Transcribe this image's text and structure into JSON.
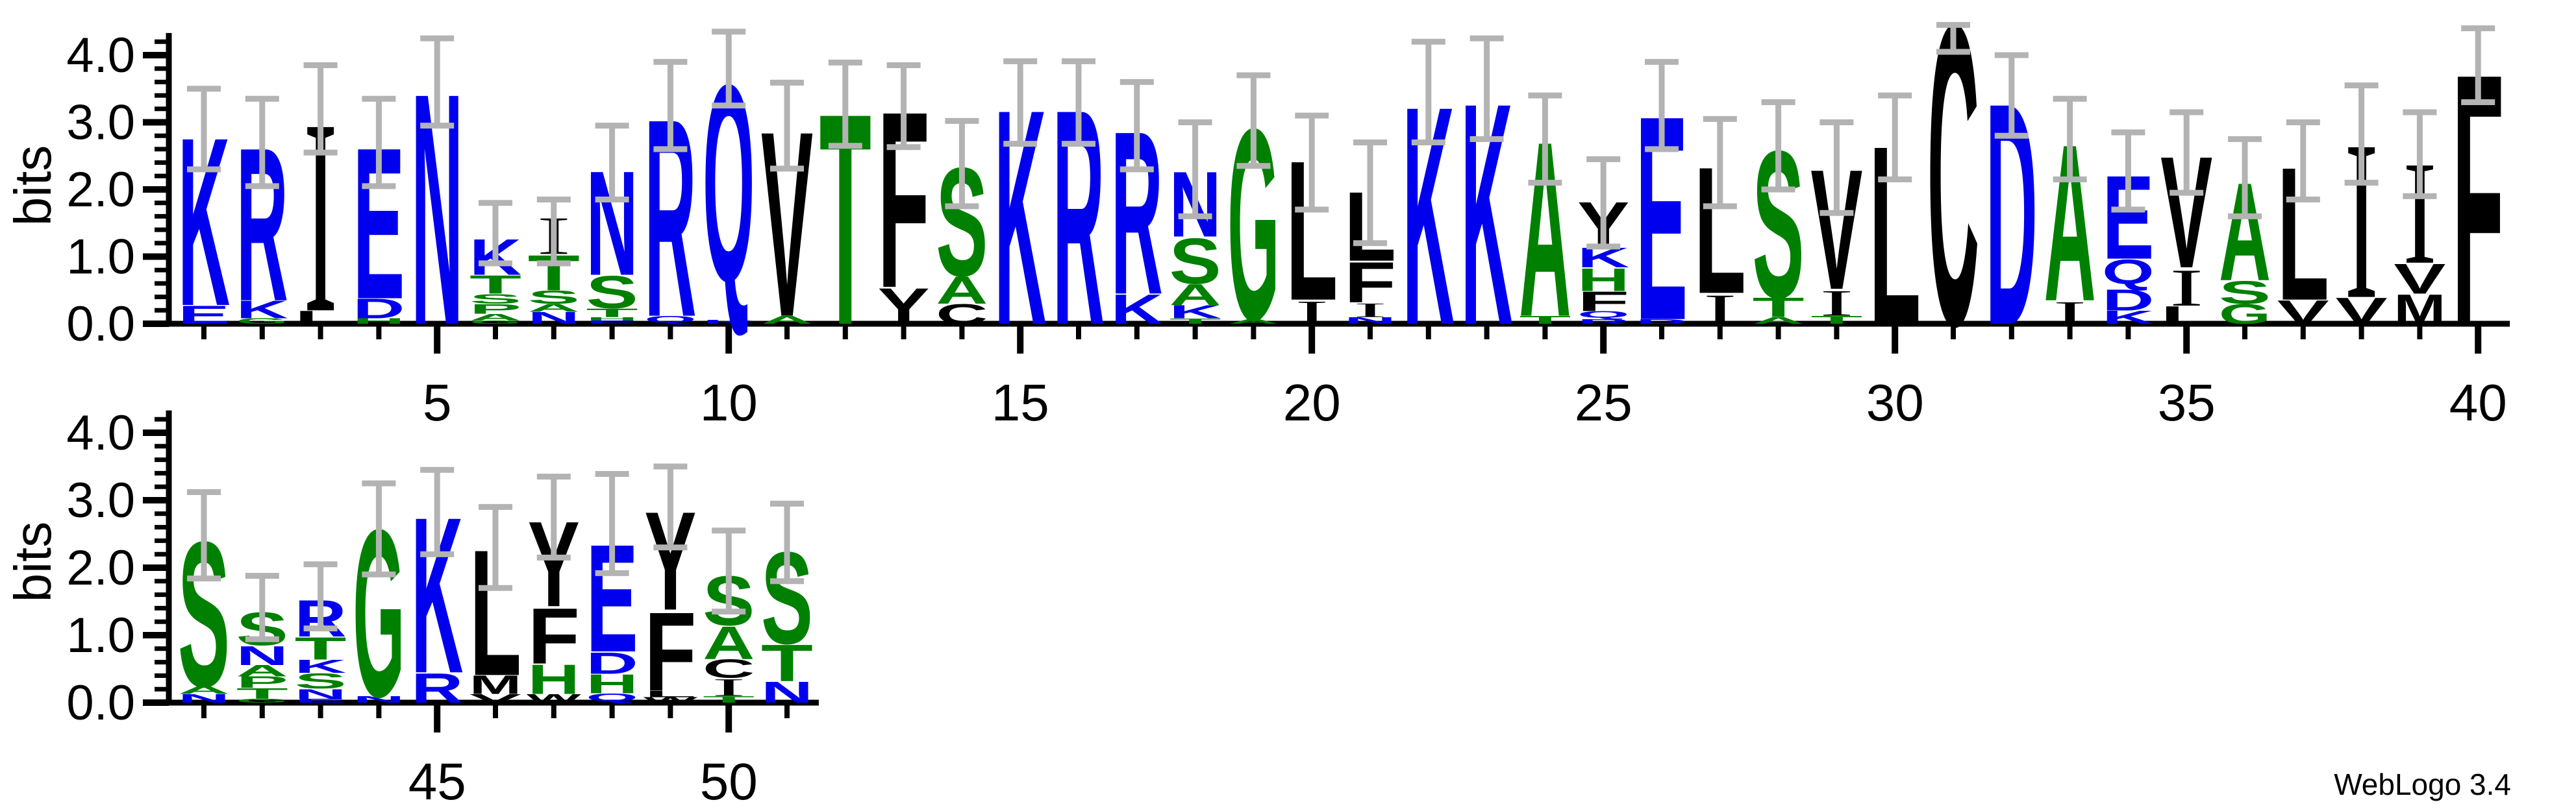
{
  "credit": "WebLogo 3.4",
  "chart_data": {
    "type": "bar",
    "variant": "protein-sequence-logo",
    "title": "",
    "xlabel": "",
    "ylabel": "bits",
    "ylim": [
      0,
      4.33
    ],
    "ytick_labels": [
      "0.0",
      "1.0",
      "2.0",
      "3.0",
      "4.0"
    ],
    "ytick_values": [
      0,
      1,
      2,
      3,
      4
    ],
    "minor_ytick_step": 0.2,
    "grid": false,
    "legend": "none",
    "error_bars": true,
    "colors": {
      "blue": "#0000ee",
      "green": "#008000",
      "black": "#000000",
      "error_bar_gray": "#b3b3b3",
      "axis": "#000000"
    },
    "color_classes": {
      "blue_hydrophilic": "KRDENQ",
      "green_neutral": "STGAHP",
      "black_hydrophobic": "ILVFMWYC"
    },
    "rows": [
      {
        "row_index": 1,
        "position_range": [
          1,
          40
        ],
        "xtick_labels": [
          5,
          10,
          15,
          20,
          25,
          30,
          35,
          40
        ],
        "stacks": [
          {
            "pos": 1,
            "letters": [
              [
                "E",
                0.28
              ],
              [
                "K",
                2.58
              ]
            ],
            "err": [
              2.3,
              3.5
            ]
          },
          {
            "pos": 2,
            "letters": [
              [
                "G",
                0.08
              ],
              [
                "K",
                0.27
              ],
              [
                "R",
                2.35
              ]
            ],
            "err": [
              2.05,
              3.35
            ]
          },
          {
            "pos": 3,
            "letters": [
              [
                "L",
                0.2
              ],
              [
                "I",
                3.0
              ]
            ],
            "err": [
              2.55,
              3.85
            ]
          },
          {
            "pos": 4,
            "letters": [
              [
                "H",
                0.08
              ],
              [
                "D",
                0.3
              ],
              [
                "E",
                2.32
              ]
            ],
            "err": [
              2.05,
              3.35
            ]
          },
          {
            "pos": 5,
            "letters": [
              [
                "N",
                3.55
              ]
            ],
            "err": [
              2.95,
              4.25
            ]
          },
          {
            "pos": 6,
            "letters": [
              [
                "G",
                0.05
              ],
              [
                "A",
                0.1
              ],
              [
                "P",
                0.15
              ],
              [
                "S",
                0.15
              ],
              [
                "T",
                0.28
              ],
              [
                "K",
                0.55
              ]
            ],
            "err": [
              0.9,
              1.8
            ]
          },
          {
            "pos": 7,
            "letters": [
              [
                "N",
                0.18
              ],
              [
                "A",
                0.12
              ],
              [
                "S",
                0.2
              ],
              [
                "T",
                0.54
              ],
              [
                "I",
                0.58
              ]
            ],
            "err": [
              0.9,
              1.85
            ]
          },
          {
            "pos": 8,
            "letters": [
              [
                "E",
                0.05
              ],
              [
                "H",
                0.05
              ],
              [
                "T",
                0.13
              ],
              [
                "S",
                0.5
              ],
              [
                "N",
                1.6
              ]
            ],
            "err": [
              1.85,
              2.95
            ]
          },
          {
            "pos": 9,
            "letters": [
              [
                "Q",
                0.12
              ],
              [
                "R",
                3.03
              ]
            ],
            "err": [
              2.6,
              3.9
            ]
          },
          {
            "pos": 10,
            "letters": [
              [
                "K",
                0.06
              ],
              [
                "Q",
                3.6
              ]
            ],
            "err": [
              3.25,
              4.35
            ]
          },
          {
            "pos": 11,
            "letters": [
              [
                "A",
                0.12
              ],
              [
                "V",
                2.84
              ]
            ],
            "err": [
              2.31,
              3.59
            ]
          },
          {
            "pos": 12,
            "letters": [
              [
                "T",
                3.24
              ]
            ],
            "err": [
              2.65,
              3.89
            ]
          },
          {
            "pos": 13,
            "letters": [
              [
                "Y",
                0.55
              ],
              [
                "F",
                2.7
              ]
            ],
            "err": [
              2.63,
              3.85
            ]
          },
          {
            "pos": 14,
            "letters": [
              [
                "C",
                0.3
              ],
              [
                "A",
                0.42
              ],
              [
                "S",
                1.66
              ]
            ],
            "err": [
              1.75,
              3.02
            ]
          },
          {
            "pos": 15,
            "letters": [
              [
                "K",
                3.3
              ]
            ],
            "err": [
              2.68,
              3.91
            ]
          },
          {
            "pos": 16,
            "letters": [
              [
                "R",
                3.3
              ]
            ],
            "err": [
              2.68,
              3.91
            ]
          },
          {
            "pos": 17,
            "letters": [
              [
                "K",
                0.45
              ],
              [
                "R",
                2.5
              ]
            ],
            "err": [
              2.3,
              3.6
            ]
          },
          {
            "pos": 18,
            "letters": [
              [
                "T",
                0.08
              ],
              [
                "K",
                0.2
              ],
              [
                "A",
                0.32
              ],
              [
                "S",
                0.7
              ],
              [
                "N",
                1.0
              ]
            ],
            "err": [
              1.6,
              3.0
            ]
          },
          {
            "pos": 19,
            "letters": [
              [
                "A",
                0.07
              ],
              [
                "G",
                2.93
              ]
            ],
            "err": [
              2.35,
              3.7
            ]
          },
          {
            "pos": 20,
            "letters": [
              [
                "I",
                0.36
              ],
              [
                "L",
                2.14
              ]
            ],
            "err": [
              1.7,
              3.1
            ]
          },
          {
            "pos": 21,
            "letters": [
              [
                "N",
                0.1
              ],
              [
                "I",
                0.22
              ],
              [
                "F",
                0.62
              ],
              [
                "L",
                1.06
              ]
            ],
            "err": [
              1.2,
              2.7
            ]
          },
          {
            "pos": 22,
            "letters": [
              [
                "K",
                3.35
              ]
            ],
            "err": [
              2.7,
              4.2
            ]
          },
          {
            "pos": 23,
            "letters": [
              [
                "K",
                3.4
              ]
            ],
            "err": [
              2.75,
              4.25
            ]
          },
          {
            "pos": 24,
            "letters": [
              [
                "T",
                0.12
              ],
              [
                "A",
                2.68
              ]
            ],
            "err": [
              2.1,
              3.4
            ]
          },
          {
            "pos": 25,
            "letters": [
              [
                "R",
                0.07
              ],
              [
                "Q",
                0.12
              ],
              [
                "F",
                0.3
              ],
              [
                "H",
                0.35
              ],
              [
                "K",
                0.3
              ],
              [
                "Y",
                0.7
              ]
            ],
            "err": [
              1.15,
              2.45
            ]
          },
          {
            "pos": 26,
            "letters": [
              [
                "D",
                0.07
              ],
              [
                "E",
                3.13
              ]
            ],
            "err": [
              2.6,
              3.9
            ]
          },
          {
            "pos": 27,
            "letters": [
              [
                "I",
                0.46
              ],
              [
                "L",
                1.94
              ]
            ],
            "err": [
              1.75,
              3.05
            ]
          },
          {
            "pos": 28,
            "letters": [
              [
                "A",
                0.1
              ],
              [
                "T",
                0.3
              ],
              [
                "S",
                2.25
              ]
            ],
            "err": [
              2.0,
              3.3
            ]
          },
          {
            "pos": 29,
            "letters": [
              [
                "T",
                0.12
              ],
              [
                "I",
                0.4
              ],
              [
                "V",
                1.84
              ]
            ],
            "err": [
              1.65,
              3.0
            ]
          },
          {
            "pos": 30,
            "letters": [
              [
                "L",
                2.74
              ]
            ],
            "err": [
              2.15,
              3.4
            ]
          },
          {
            "pos": 31,
            "letters": [
              [
                "C",
                4.6
              ]
            ],
            "err": [
              4.05,
              4.45
            ]
          },
          {
            "pos": 32,
            "letters": [
              [
                "D",
                3.4
              ]
            ],
            "err": [
              2.8,
              4.0
            ]
          },
          {
            "pos": 33,
            "letters": [
              [
                "I",
                0.35
              ],
              [
                "A",
                2.4
              ]
            ],
            "err": [
              2.15,
              3.35
            ]
          },
          {
            "pos": 34,
            "letters": [
              [
                "K",
                0.2
              ],
              [
                "D",
                0.32
              ],
              [
                "Q",
                0.45
              ],
              [
                "E",
                1.28
              ]
            ],
            "err": [
              1.7,
              2.85
            ]
          },
          {
            "pos": 35,
            "letters": [
              [
                "L",
                0.27
              ],
              [
                "I",
                0.57
              ],
              [
                "V",
                1.71
              ]
            ],
            "err": [
              1.95,
              3.15
            ]
          },
          {
            "pos": 36,
            "letters": [
              [
                "G",
                0.3
              ],
              [
                "S",
                0.35
              ],
              [
                "A",
                1.5
              ]
            ],
            "err": [
              1.6,
              2.75
            ]
          },
          {
            "pos": 37,
            "letters": [
              [
                "V",
                0.36
              ],
              [
                "L",
                2.04
              ]
            ],
            "err": [
              1.85,
              3.0
            ]
          },
          {
            "pos": 38,
            "letters": [
              [
                "V",
                0.4
              ],
              [
                "I",
                2.45
              ]
            ],
            "err": [
              2.1,
              3.55
            ]
          },
          {
            "pos": 39,
            "letters": [
              [
                "M",
                0.45
              ],
              [
                "V",
                0.46
              ],
              [
                "I",
                1.59
              ]
            ],
            "err": [
              1.9,
              3.15
            ]
          },
          {
            "pos": 40,
            "letters": [
              [
                "F",
                3.85
              ]
            ],
            "err": [
              3.3,
              4.4
            ]
          }
        ]
      },
      {
        "row_index": 2,
        "position_range": [
          41,
          51
        ],
        "xtick_labels": [
          45,
          50
        ],
        "stacks": [
          {
            "pos": 41,
            "letters": [
              [
                "N",
                0.13
              ],
              [
                "A",
                0.12
              ],
              [
                "S",
                2.21
              ]
            ],
            "err": [
              1.84,
              3.12
            ]
          },
          {
            "pos": 42,
            "letters": [
              [
                "G",
                0.06
              ],
              [
                "T",
                0.16
              ],
              [
                "P",
                0.17
              ],
              [
                "A",
                0.17
              ],
              [
                "N",
                0.29
              ],
              [
                "S",
                0.5
              ]
            ],
            "err": [
              0.94,
              1.88
            ]
          },
          {
            "pos": 43,
            "letters": [
              [
                "E",
                0.06
              ],
              [
                "N",
                0.15
              ],
              [
                "S",
                0.23
              ],
              [
                "K",
                0.2
              ],
              [
                "T",
                0.34
              ],
              [
                "R",
                0.56
              ]
            ],
            "err": [
              1.1,
              2.05
            ]
          },
          {
            "pos": 44,
            "letters": [
              [
                "N",
                0.1
              ],
              [
                "G",
                2.55
              ]
            ],
            "err": [
              1.9,
              3.25
            ]
          },
          {
            "pos": 45,
            "letters": [
              [
                "R",
                0.45
              ],
              [
                "K",
                2.38
              ]
            ],
            "err": [
              2.2,
              3.45
            ]
          },
          {
            "pos": 46,
            "letters": [
              [
                "V",
                0.13
              ],
              [
                "M",
                0.28
              ],
              [
                "L",
                1.92
              ]
            ],
            "err": [
              1.7,
              2.9
            ]
          },
          {
            "pos": 47,
            "letters": [
              [
                "W",
                0.13
              ],
              [
                "H",
                0.45
              ],
              [
                "F",
                0.85
              ],
              [
                "Y",
                1.3
              ]
            ],
            "err": [
              2.15,
              3.35
            ]
          },
          {
            "pos": 48,
            "letters": [
              [
                "Q",
                0.14
              ],
              [
                "H",
                0.29
              ],
              [
                "D",
                0.33
              ],
              [
                "E",
                1.64
              ]
            ],
            "err": [
              1.92,
              3.39
            ]
          },
          {
            "pos": 49,
            "letters": [
              [
                "W",
                0.08
              ],
              [
                "L",
                0.1
              ],
              [
                "F",
                1.2
              ],
              [
                "Y",
                1.5
              ]
            ],
            "err": [
              2.3,
              3.5
            ]
          },
          {
            "pos": 50,
            "letters": [
              [
                "T",
                0.1
              ],
              [
                "I",
                0.27
              ],
              [
                "C",
                0.28
              ],
              [
                "A",
                0.5
              ],
              [
                "S",
                0.75
              ]
            ],
            "err": [
              1.35,
              2.55
            ]
          },
          {
            "pos": 51,
            "letters": [
              [
                "N",
                0.32
              ],
              [
                "T",
                0.56
              ],
              [
                "S",
                1.4
              ]
            ],
            "err": [
              1.8,
              2.95
            ]
          }
        ]
      }
    ]
  }
}
